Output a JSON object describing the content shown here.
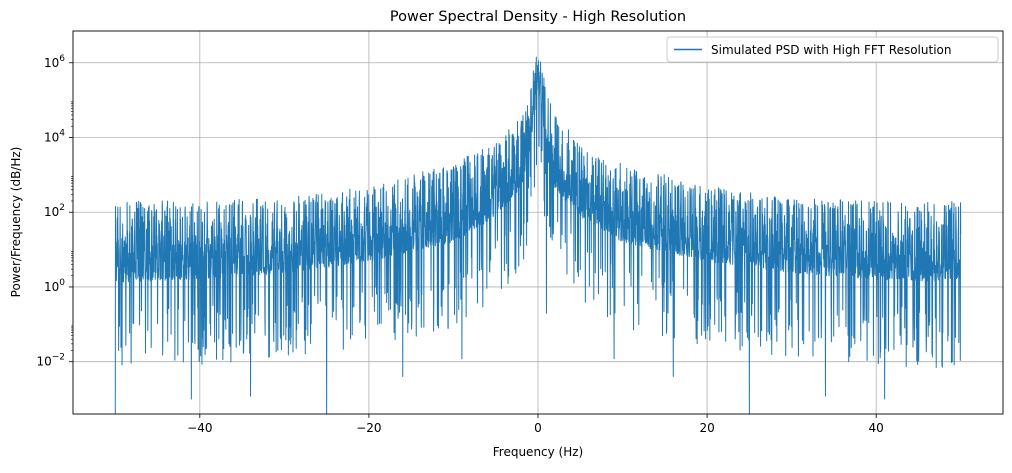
{
  "chart_data": {
    "type": "line",
    "title": "Power Spectral Density - High Resolution",
    "xlabel": "Frequency (Hz)",
    "ylabel": "Power/Frequency (dB/Hz)",
    "xlim": [
      -55,
      55
    ],
    "ylim_log10": [
      -3.4,
      6.85
    ],
    "y_scale": "log",
    "grid": true,
    "legend_position": "top-right",
    "x_ticks": [
      {
        "value": -40,
        "label": "−40"
      },
      {
        "value": -20,
        "label": "−20"
      },
      {
        "value": 0,
        "label": "0"
      },
      {
        "value": 20,
        "label": "20"
      },
      {
        "value": 40,
        "label": "40"
      }
    ],
    "y_ticks": [
      {
        "exp": -2,
        "base": "10",
        "power": "−2"
      },
      {
        "exp": 0,
        "base": "10",
        "power": "0"
      },
      {
        "exp": 2,
        "base": "10",
        "power": "2"
      },
      {
        "exp": 4,
        "base": "10",
        "power": "4"
      },
      {
        "exp": 6,
        "base": "10",
        "power": "6"
      }
    ],
    "series": [
      {
        "name": "Simulated PSD with High FFT Resolution",
        "color": "#1f77b4",
        "x_range": [
          -50,
          50
        ],
        "envelope": [
          {
            "x": -50,
            "peak": 2.3,
            "trough": -0.6
          },
          {
            "x": -40,
            "peak": 2.3,
            "trough": -0.5
          },
          {
            "x": -30,
            "peak": 2.4,
            "trough": -0.3
          },
          {
            "x": -20,
            "peak": 2.7,
            "trough": 0.0
          },
          {
            "x": -10,
            "peak": 3.3,
            "trough": 0.5
          },
          {
            "x": -5,
            "peak": 3.9,
            "trough": 1.2
          },
          {
            "x": -2,
            "peak": 4.6,
            "trough": 2.0
          },
          {
            "x": -1,
            "peak": 5.3,
            "trough": 3.0
          },
          {
            "x": 0,
            "peak": 6.4,
            "trough": 5.0
          },
          {
            "x": 1,
            "peak": 5.3,
            "trough": 3.0
          },
          {
            "x": 2,
            "peak": 4.6,
            "trough": 2.0
          },
          {
            "x": 5,
            "peak": 3.9,
            "trough": 1.2
          },
          {
            "x": 10,
            "peak": 3.3,
            "trough": 0.5
          },
          {
            "x": 20,
            "peak": 2.7,
            "trough": 0.0
          },
          {
            "x": 30,
            "peak": 2.4,
            "trough": -0.3
          },
          {
            "x": 40,
            "peak": 2.3,
            "trough": -0.5
          },
          {
            "x": 50,
            "peak": 2.3,
            "trough": -0.6
          }
        ],
        "deep_dips": [
          {
            "x": -50,
            "value": 0.0002
          },
          {
            "x": -41,
            "value": 0.001
          },
          {
            "x": -34,
            "value": 0.0012
          },
          {
            "x": -25,
            "value": 0.0002
          },
          {
            "x": -16,
            "value": 0.004
          },
          {
            "x": -9,
            "value": 0.012
          },
          {
            "x": 1,
            "value": 0.2
          },
          {
            "x": 9,
            "value": 0.012
          },
          {
            "x": 16,
            "value": 0.004
          },
          {
            "x": 25,
            "value": 0.0002
          },
          {
            "x": 34,
            "value": 0.0012
          },
          {
            "x": 41,
            "value": 0.001
          },
          {
            "x": 49,
            "value": 0.01
          }
        ]
      }
    ]
  }
}
